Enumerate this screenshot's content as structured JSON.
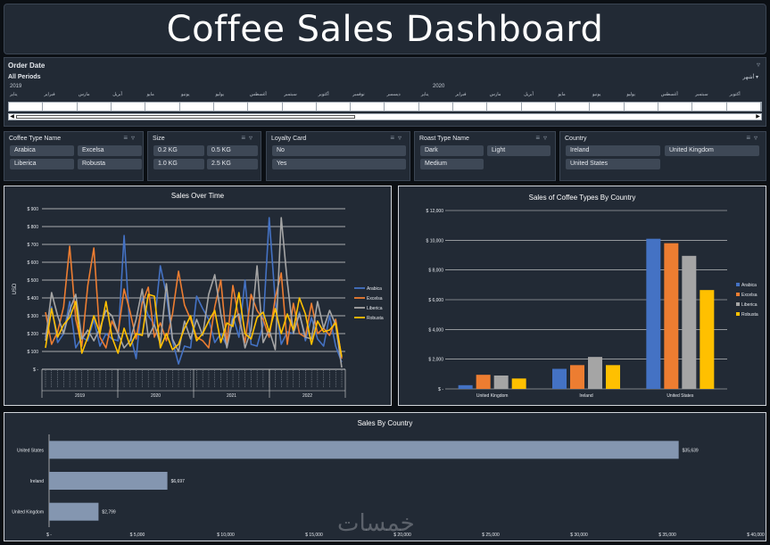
{
  "dashboard": {
    "title": "Coffee Sales Dashboard"
  },
  "timeline": {
    "header": "Order Date",
    "periods": "All Periods",
    "level": "أشهر",
    "year_2019": "2019",
    "year_2020": "2020",
    "months_2019": [
      "يناير",
      "فبراير",
      "مارس",
      "أبريل",
      "مايو",
      "يونيو",
      "يوليو",
      "أغسطس",
      "سبتمبر",
      "أكتوبر",
      "نوفمبر",
      "ديسمبر"
    ],
    "months_2020": [
      "يناير",
      "فبراير",
      "مارس",
      "أبريل",
      "مايو",
      "يونيو",
      "يوليو",
      "أغسطس",
      "سبتمبر",
      "أكتوبر"
    ]
  },
  "slicers": {
    "coffee_type": {
      "title": "Coffee Type Name",
      "items": [
        "Arabica",
        "Excelsa",
        "Liberica",
        "Robusta"
      ]
    },
    "size": {
      "title": "Size",
      "items": [
        "0.2 KG",
        "0.5 KG",
        "1.0 KG",
        "2.5 KG"
      ]
    },
    "loyalty": {
      "title": "Loyalty Card",
      "items": [
        "No",
        "Yes"
      ]
    },
    "roast": {
      "title": "Roast Type Name",
      "items": [
        "Dark",
        "Light",
        "Medium"
      ]
    },
    "country": {
      "title": "Country",
      "items": [
        "Ireland",
        "United Kingdom",
        "United States"
      ]
    }
  },
  "chart_data": [
    {
      "type": "line",
      "title": "Sales Over Time",
      "ylabel": "USD",
      "ylim": [
        0,
        900
      ],
      "yticks": [
        "$ -",
        "$ 100",
        "$ 200",
        "$ 300",
        "$ 400",
        "$ 500",
        "$ 600",
        "$ 700",
        "$ 800",
        "$ 900"
      ],
      "years": [
        "2019",
        "2020",
        "2021",
        "2022"
      ],
      "legend_position": "right",
      "series": [
        {
          "name": "Arabica",
          "color": "#4472c4",
          "values": [
            180,
            350,
            150,
            200,
            380,
            120,
            180,
            160,
            280,
            130,
            200,
            170,
            160,
            750,
            200,
            60,
            400,
            300,
            250,
            580,
            420,
            160,
            30,
            130,
            120,
            410,
            340,
            280,
            150,
            200,
            130,
            300,
            180,
            500,
            140,
            130,
            250,
            850,
            380,
            140,
            210,
            200,
            320,
            160,
            290,
            170,
            130,
            300,
            130,
            40
          ]
        },
        {
          "name": "Excelsa",
          "color": "#ed7d31",
          "values": [
            320,
            140,
            210,
            350,
            690,
            280,
            130,
            470,
            680,
            180,
            120,
            270,
            200,
            450,
            320,
            170,
            370,
            460,
            180,
            260,
            160,
            310,
            550,
            360,
            280,
            180,
            160,
            120,
            350,
            500,
            140,
            470,
            280,
            150,
            420,
            330,
            280,
            180,
            400,
            540,
            140,
            370,
            200,
            180,
            370,
            200,
            230,
            190,
            280,
            60
          ]
        },
        {
          "name": "Liberica",
          "color": "#a5a5a5",
          "values": [
            160,
            430,
            300,
            200,
            330,
            420,
            170,
            220,
            160,
            230,
            330,
            300,
            200,
            120,
            160,
            280,
            450,
            180,
            250,
            140,
            480,
            170,
            100,
            270,
            170,
            280,
            190,
            420,
            530,
            310,
            120,
            280,
            310,
            120,
            220,
            580,
            150,
            220,
            110,
            850,
            490,
            200,
            310,
            180,
            170,
            380,
            230,
            330,
            250,
            10
          ]
        },
        {
          "name": "Robusta",
          "color": "#ffc000",
          "values": [
            120,
            340,
            180,
            250,
            290,
            380,
            90,
            180,
            300,
            200,
            380,
            180,
            90,
            230,
            130,
            200,
            190,
            420,
            410,
            120,
            200,
            110,
            140,
            230,
            300,
            160,
            200,
            270,
            330,
            150,
            260,
            240,
            430,
            200,
            170,
            290,
            320,
            210,
            340,
            200,
            310,
            220,
            400,
            310,
            140,
            270,
            210,
            220,
            260,
            70
          ]
        }
      ]
    },
    {
      "type": "bar",
      "title": "Sales of Coffee Types By Country",
      "ylim": [
        0,
        12000
      ],
      "yticks": [
        "$ -",
        "$ 2,000",
        "$ 4,000",
        "$ 6,000",
        "$ 8,000",
        "$ 10,000",
        "$ 12,000"
      ],
      "categories": [
        "United Kingdom",
        "Ireland",
        "United States"
      ],
      "legend_position": "right",
      "series": [
        {
          "name": "Arabica",
          "color": "#4472c4",
          "values": [
            250,
            1350,
            10100
          ]
        },
        {
          "name": "Excelsa",
          "color": "#ed7d31",
          "values": [
            950,
            1600,
            9800
          ]
        },
        {
          "name": "Liberica",
          "color": "#a5a5a5",
          "values": [
            900,
            2150,
            8950
          ]
        },
        {
          "name": "Robusta",
          "color": "#ffc000",
          "values": [
            700,
            1600,
            6650
          ]
        }
      ]
    },
    {
      "type": "bar",
      "orientation": "horizontal",
      "title": "Sales By Country",
      "xlim": [
        0,
        40000
      ],
      "xticks": [
        "$ -",
        "$ 5,000",
        "$ 10,000",
        "$ 15,000",
        "$ 20,000",
        "$ 25,000",
        "$ 30,000",
        "$ 35,000",
        "$ 40,000"
      ],
      "categories": [
        "United States",
        "Ireland",
        "United Kingdom"
      ],
      "values": [
        35639,
        6697,
        2799
      ],
      "labels": [
        "$35,639",
        "$6,697",
        "$2,799"
      ],
      "color": "#8496b0"
    }
  ],
  "watermark": "خمسات"
}
